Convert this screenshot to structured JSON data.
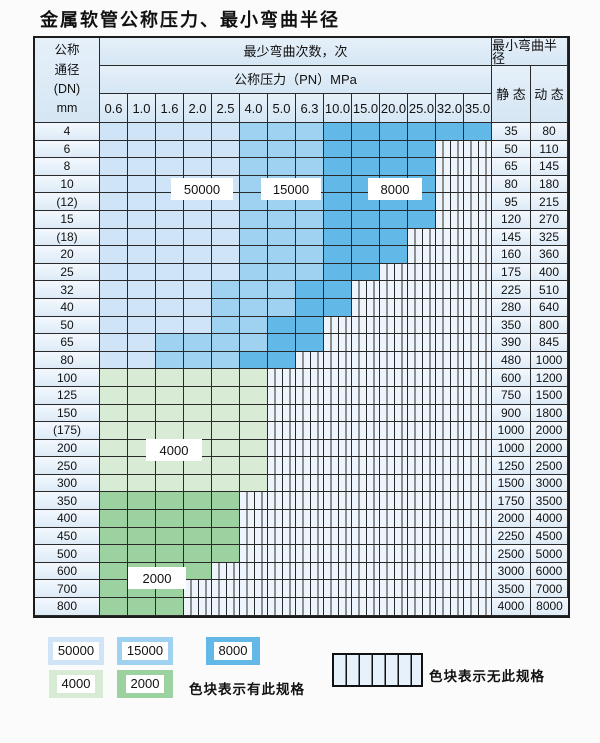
{
  "title": "金属软管公称压力、最小弯曲半径",
  "table": {
    "header": {
      "dn_lines": [
        "公称",
        "通径",
        "(DN)",
        "mm"
      ],
      "bend_cycles_label": "最少弯曲次数，次",
      "pressure_label": "公称压力（PN）MPa",
      "radius_label": "最小弯曲半径",
      "static_label": "静 态",
      "dynamic_label": "动 态",
      "pressures": [
        "0.6",
        "1.0",
        "1.6",
        "2.0",
        "2.5",
        "4.0",
        "5.0",
        "6.3",
        "10.0",
        "15.0",
        "20.0",
        "25.0",
        "32.0",
        "35.0"
      ]
    },
    "cycle_band_colors": {
      "b1": "#cfe5f7",
      "b2": "#9fd2f0",
      "b3": "#62b9e8",
      "g1": "#d7ebd5",
      "g2": "#9bd2a0",
      "hatch_bg": "#edf4fb"
    },
    "rows": [
      {
        "dn": "4",
        "static": "35",
        "dynamic": "80",
        "cells": [
          "b1",
          "b1",
          "b1",
          "b1",
          "b1",
          "b2",
          "b2",
          "b2",
          "b3",
          "b3",
          "b3",
          "b3",
          "b3",
          "b3"
        ]
      },
      {
        "dn": "6",
        "static": "50",
        "dynamic": "110",
        "cells": [
          "b1",
          "b1",
          "b1",
          "b1",
          "b1",
          "b2",
          "b2",
          "b2",
          "b3",
          "b3",
          "b3",
          "b3",
          "h",
          "h"
        ]
      },
      {
        "dn": "8",
        "static": "65",
        "dynamic": "145",
        "cells": [
          "b1",
          "b1",
          "b1",
          "b1",
          "b1",
          "b2",
          "b2",
          "b2",
          "b3",
          "b3",
          "b3",
          "b3",
          "h",
          "h"
        ]
      },
      {
        "dn": "10",
        "static": "80",
        "dynamic": "180",
        "cells": [
          "b1",
          "b1",
          "b1",
          "b1",
          "b1",
          "b2",
          "b2",
          "b2",
          "b3",
          "b3",
          "b3",
          "b3",
          "h",
          "h"
        ]
      },
      {
        "dn": "(12)",
        "static": "95",
        "dynamic": "215",
        "cells": [
          "b1",
          "b1",
          "b1",
          "b1",
          "b1",
          "b2",
          "b2",
          "b2",
          "b3",
          "b3",
          "b3",
          "b3",
          "h",
          "h"
        ]
      },
      {
        "dn": "15",
        "static": "120",
        "dynamic": "270",
        "cells": [
          "b1",
          "b1",
          "b1",
          "b1",
          "b1",
          "b2",
          "b2",
          "b2",
          "b3",
          "b3",
          "b3",
          "b3",
          "h",
          "h"
        ]
      },
      {
        "dn": "(18)",
        "static": "145",
        "dynamic": "325",
        "cells": [
          "b1",
          "b1",
          "b1",
          "b1",
          "b1",
          "b2",
          "b2",
          "b2",
          "b3",
          "b3",
          "b3",
          "h",
          "h",
          "h"
        ]
      },
      {
        "dn": "20",
        "static": "160",
        "dynamic": "360",
        "cells": [
          "b1",
          "b1",
          "b1",
          "b1",
          "b1",
          "b2",
          "b2",
          "b2",
          "b3",
          "b3",
          "b3",
          "h",
          "h",
          "h"
        ]
      },
      {
        "dn": "25",
        "static": "175",
        "dynamic": "400",
        "cells": [
          "b1",
          "b1",
          "b1",
          "b1",
          "b1",
          "b2",
          "b2",
          "b2",
          "b3",
          "b3",
          "h",
          "h",
          "h",
          "h"
        ]
      },
      {
        "dn": "32",
        "static": "225",
        "dynamic": "510",
        "cells": [
          "b1",
          "b1",
          "b1",
          "b1",
          "b2",
          "b2",
          "b2",
          "b3",
          "b3",
          "h",
          "h",
          "h",
          "h",
          "h"
        ]
      },
      {
        "dn": "40",
        "static": "280",
        "dynamic": "640",
        "cells": [
          "b1",
          "b1",
          "b1",
          "b1",
          "b2",
          "b2",
          "b2",
          "b3",
          "b3",
          "h",
          "h",
          "h",
          "h",
          "h"
        ]
      },
      {
        "dn": "50",
        "static": "350",
        "dynamic": "800",
        "cells": [
          "b1",
          "b1",
          "b1",
          "b1",
          "b2",
          "b2",
          "b3",
          "b3",
          "h",
          "h",
          "h",
          "h",
          "h",
          "h"
        ]
      },
      {
        "dn": "65",
        "static": "390",
        "dynamic": "845",
        "cells": [
          "b1",
          "b1",
          "b2",
          "b2",
          "b2",
          "b2",
          "b3",
          "b3",
          "h",
          "h",
          "h",
          "h",
          "h",
          "h"
        ]
      },
      {
        "dn": "80",
        "static": "480",
        "dynamic": "1000",
        "cells": [
          "b1",
          "b1",
          "b2",
          "b2",
          "b2",
          "b3",
          "b3",
          "h",
          "h",
          "h",
          "h",
          "h",
          "h",
          "h"
        ]
      },
      {
        "dn": "100",
        "static": "600",
        "dynamic": "1200",
        "cells": [
          "g1",
          "g1",
          "g1",
          "g1",
          "g1",
          "g1",
          "h",
          "h",
          "h",
          "h",
          "h",
          "h",
          "h",
          "h"
        ]
      },
      {
        "dn": "125",
        "static": "750",
        "dynamic": "1500",
        "cells": [
          "g1",
          "g1",
          "g1",
          "g1",
          "g1",
          "g1",
          "h",
          "h",
          "h",
          "h",
          "h",
          "h",
          "h",
          "h"
        ]
      },
      {
        "dn": "150",
        "static": "900",
        "dynamic": "1800",
        "cells": [
          "g1",
          "g1",
          "g1",
          "g1",
          "g1",
          "g1",
          "h",
          "h",
          "h",
          "h",
          "h",
          "h",
          "h",
          "h"
        ]
      },
      {
        "dn": "(175)",
        "static": "1000",
        "dynamic": "2000",
        "cells": [
          "g1",
          "g1",
          "g1",
          "g1",
          "g1",
          "g1",
          "h",
          "h",
          "h",
          "h",
          "h",
          "h",
          "h",
          "h"
        ]
      },
      {
        "dn": "200",
        "static": "1000",
        "dynamic": "2000",
        "cells": [
          "g1",
          "g1",
          "g1",
          "g1",
          "g1",
          "g1",
          "h",
          "h",
          "h",
          "h",
          "h",
          "h",
          "h",
          "h"
        ]
      },
      {
        "dn": "250",
        "static": "1250",
        "dynamic": "2500",
        "cells": [
          "g1",
          "g1",
          "g1",
          "g1",
          "g1",
          "g1",
          "h",
          "h",
          "h",
          "h",
          "h",
          "h",
          "h",
          "h"
        ]
      },
      {
        "dn": "300",
        "static": "1500",
        "dynamic": "3000",
        "cells": [
          "g1",
          "g1",
          "g1",
          "g1",
          "g1",
          "g1",
          "h",
          "h",
          "h",
          "h",
          "h",
          "h",
          "h",
          "h"
        ]
      },
      {
        "dn": "350",
        "static": "1750",
        "dynamic": "3500",
        "cells": [
          "g2",
          "g2",
          "g2",
          "g2",
          "g2",
          "h",
          "h",
          "h",
          "h",
          "h",
          "h",
          "h",
          "h",
          "h"
        ]
      },
      {
        "dn": "400",
        "static": "2000",
        "dynamic": "4000",
        "cells": [
          "g2",
          "g2",
          "g2",
          "g2",
          "g2",
          "h",
          "h",
          "h",
          "h",
          "h",
          "h",
          "h",
          "h",
          "h"
        ]
      },
      {
        "dn": "450",
        "static": "2250",
        "dynamic": "4500",
        "cells": [
          "g2",
          "g2",
          "g2",
          "g2",
          "g2",
          "h",
          "h",
          "h",
          "h",
          "h",
          "h",
          "h",
          "h",
          "h"
        ]
      },
      {
        "dn": "500",
        "static": "2500",
        "dynamic": "5000",
        "cells": [
          "g2",
          "g2",
          "g2",
          "g2",
          "g2",
          "h",
          "h",
          "h",
          "h",
          "h",
          "h",
          "h",
          "h",
          "h"
        ]
      },
      {
        "dn": "600",
        "static": "3000",
        "dynamic": "6000",
        "cells": [
          "g2",
          "g2",
          "g2",
          "g2",
          "h",
          "h",
          "h",
          "h",
          "h",
          "h",
          "h",
          "h",
          "h",
          "h"
        ]
      },
      {
        "dn": "700",
        "static": "3500",
        "dynamic": "7000",
        "cells": [
          "g2",
          "g2",
          "g2",
          "h",
          "h",
          "h",
          "h",
          "h",
          "h",
          "h",
          "h",
          "h",
          "h",
          "h"
        ]
      },
      {
        "dn": "800",
        "static": "4000",
        "dynamic": "8000",
        "cells": [
          "g2",
          "g2",
          "g2",
          "h",
          "h",
          "h",
          "h",
          "h",
          "h",
          "h",
          "h",
          "h",
          "h",
          "h"
        ]
      }
    ]
  },
  "overlays": [
    {
      "text": "50000"
    },
    {
      "text": "15000"
    },
    {
      "text": "8000"
    },
    {
      "text": "4000"
    },
    {
      "text": "2000"
    }
  ],
  "legend": {
    "has_spec_swatches": [
      {
        "value": "50000",
        "color_key": "b1"
      },
      {
        "value": "15000",
        "color_key": "b2"
      },
      {
        "value": "8000",
        "color_key": "b3"
      },
      {
        "value": "4000",
        "color_key": "g1"
      },
      {
        "value": "2000",
        "color_key": "g2"
      }
    ],
    "has_spec_caption": "色块表示有此规格",
    "no_spec_caption": "色块表示无此规格"
  }
}
